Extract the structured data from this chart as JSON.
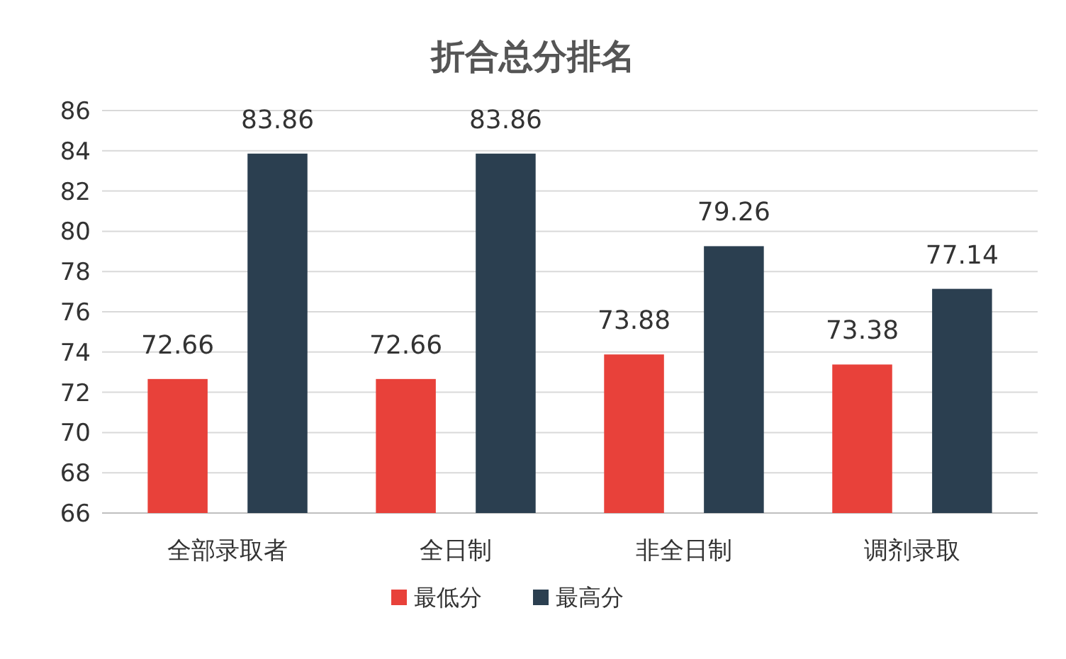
{
  "chart_data": {
    "type": "bar",
    "title": "折合总分排名",
    "categories": [
      "全部录取者",
      "全日制",
      "非全日制",
      "调剂录取"
    ],
    "series": [
      {
        "name": "最低分",
        "color": "#e8413a",
        "values": [
          72.66,
          72.66,
          73.88,
          73.38
        ]
      },
      {
        "name": "最高分",
        "color": "#2b3f50",
        "values": [
          83.86,
          83.86,
          79.26,
          77.14
        ]
      }
    ],
    "ylim": [
      66,
      86
    ],
    "yticks": [
      66,
      68,
      70,
      72,
      74,
      76,
      78,
      80,
      82,
      84,
      86
    ],
    "grid": "y",
    "legend": "bottom",
    "data_labels": true
  }
}
